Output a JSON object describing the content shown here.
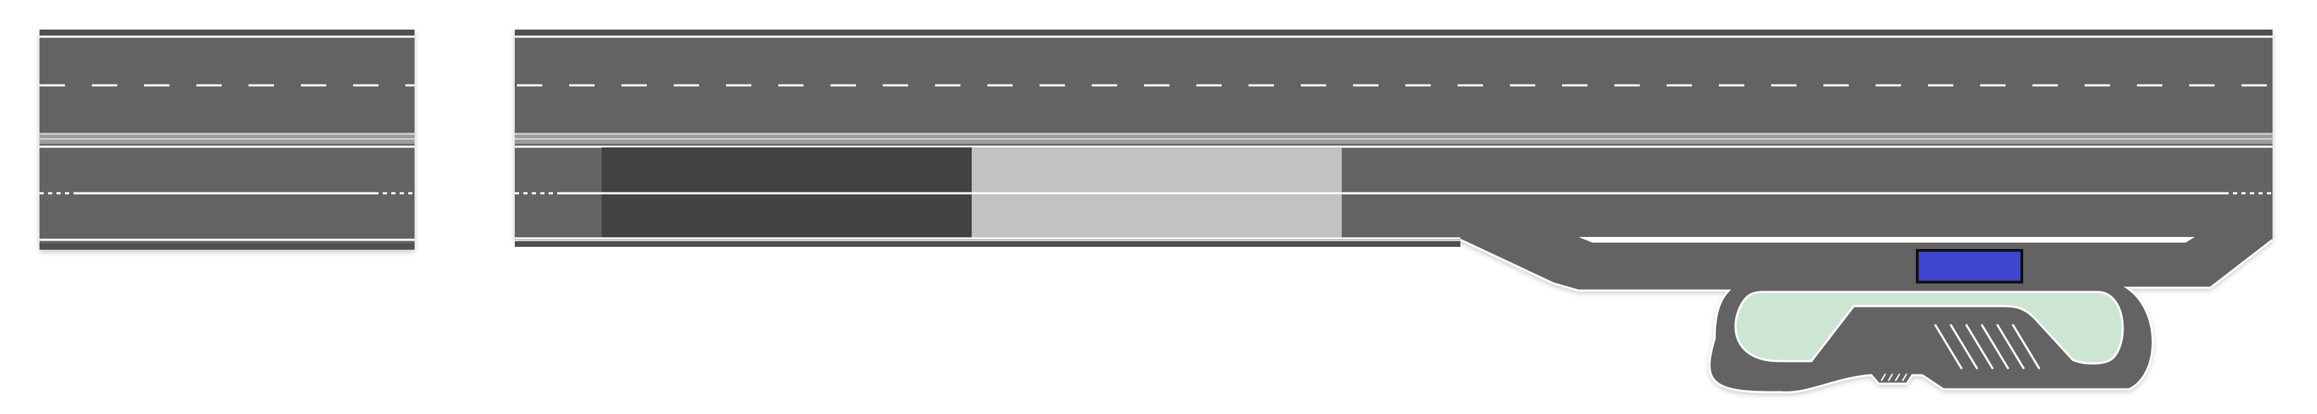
{
  "diagram": {
    "type": "road-layout",
    "description_visible_text": ""
  },
  "colors": {
    "background": "#ffffff",
    "asphalt": "#646464",
    "asphalt_dark_block": "#424242",
    "light_block": "#c2c2c2",
    "lane_marking": "#ffffff",
    "road_edge": "#555555",
    "median_stripe": "#9a9a9a",
    "island_fill": "#cde6d4",
    "vehicle_fill": "#3f45d0",
    "vehicle_outline": "#111111"
  },
  "elements": {
    "short_road_segment": "road-segment",
    "long_road_segment": "road-segment",
    "dark_block": "shaded-zone",
    "light_block": "shaded-zone",
    "ramp": "service-area-ramp",
    "island": "traffic-island",
    "vehicle": "vehicle"
  }
}
